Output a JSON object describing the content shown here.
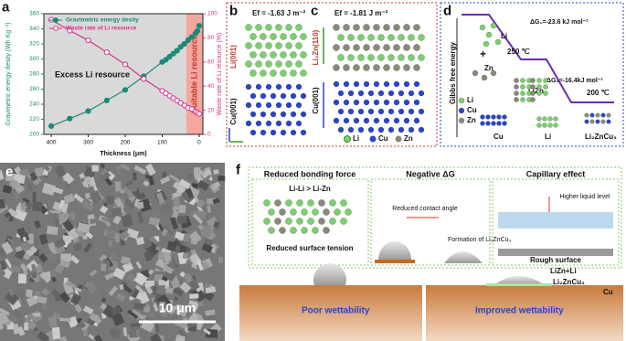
{
  "chart_data": {
    "type": "line",
    "xlabel": "Thickness (μm)",
    "ylabel": "Gravimetric energy desity (Wh Kg⁻¹)",
    "y2label": "Waste rate of Li resource (%)",
    "annotations": [
      "Excess Li resource",
      "Suitable Li resource"
    ],
    "x": [
      400,
      350,
      300,
      250,
      200,
      150,
      100,
      90,
      80,
      70,
      60,
      50,
      40,
      30,
      20,
      10,
      5,
      0
    ],
    "series": [
      {
        "name": "Gravimetric energy desity",
        "color": "#1b8a78",
        "marker": "filled",
        "values": [
          211,
          221,
          231,
          245,
          259,
          277,
          296,
          299,
          303,
          307,
          311,
          316,
          320,
          325,
          329,
          334,
          337,
          344
        ]
      },
      {
        "name": "Waste rate of Li resource",
        "color": "#d6338a",
        "marker": "open",
        "axis": "y2",
        "values": [
          95,
          86,
          78,
          68,
          58,
          46,
          36,
          34,
          32,
          30,
          28,
          26,
          24,
          22,
          21,
          19,
          18,
          17
        ]
      }
    ],
    "xlim": [
      420,
      -10
    ],
    "xticks": [
      400,
      300,
      200,
      100,
      0
    ],
    "ylim": [
      200,
      360
    ],
    "yticks": [
      200,
      220,
      240,
      260,
      280,
      300,
      320,
      340,
      360
    ],
    "y2lim": [
      0,
      100
    ],
    "y2ticks": [
      0,
      20,
      40,
      60,
      80,
      100
    ],
    "legend": "upper left"
  },
  "panel_labels": [
    "a",
    "b",
    "c",
    "d",
    "e",
    "f"
  ],
  "panel_b": {
    "energy": "Ef = -1.63 J m⁻²",
    "top_layer": "Li(001)",
    "bottom_layer": "Cu(001)"
  },
  "panel_c": {
    "energy": "Ef = -1.81 J m⁻²",
    "top_layer": "Li₂Zn(110)",
    "bottom_layer": "Cu(001)",
    "legend": [
      "Li",
      "Cu",
      "Zn"
    ]
  },
  "panel_d": {
    "y_label": "Gibbs free energy",
    "temp_1": "250 ℃",
    "dg_1": "ΔG₁=-23.6 kJ mol⁻¹",
    "dg_2": "ΔG₂=-16.4kJ mol⁻¹",
    "temp_2": "200 ℃",
    "labels": [
      "Li",
      "Zn",
      "LiZn",
      "Li",
      "Cu",
      "Zn",
      "Cu",
      "Li",
      "Li₂ZnCu₃"
    ]
  },
  "panel_e": {
    "scale_bar": "10 μm"
  },
  "panel_f": {
    "box_1": {
      "title": "Reduced bonding force",
      "relation": "Li-Li > Li-Zn",
      "caption": "Reduced surface tension"
    },
    "box_2": {
      "title": "Negative ΔG",
      "angle": "Reduced contact angle",
      "formation": "Formation of Li₂ZnCu₃"
    },
    "box_3": {
      "title": "Capillary effect",
      "level": "Higher liquid level",
      "surface": "Rough surface"
    },
    "layers": [
      "LiZn+Li",
      "Li₂ZnCu₃",
      "Cu"
    ],
    "left_caption": "Poor wettability",
    "right_caption": "Improved wettability"
  }
}
